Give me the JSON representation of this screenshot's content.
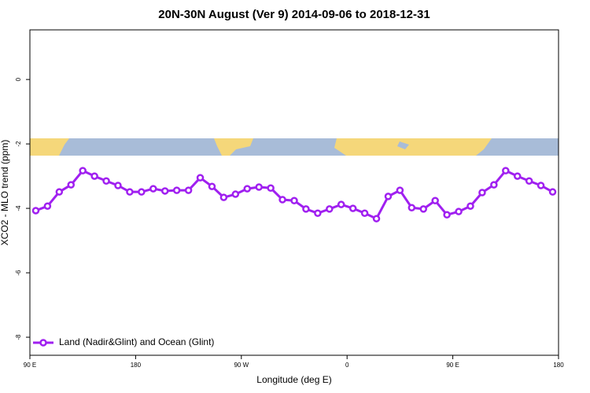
{
  "chart_data": {
    "type": "line",
    "title": "20N-30N August (Ver 9)   2014-09-06 to 2018-12-31",
    "x_label": "Longitude (deg E)",
    "y_label": "XCO2 - MLO trend (ppm)",
    "xlim": [
      90,
      540
    ],
    "xticks": [
      {
        "value": 90,
        "label": "90 E"
      },
      {
        "value": 180,
        "label": "180"
      },
      {
        "value": 270,
        "label": "90 W"
      },
      {
        "value": 360,
        "label": "0"
      },
      {
        "value": 450,
        "label": "90 E"
      },
      {
        "value": 540,
        "label": "180"
      }
    ],
    "ylim": [
      -8.56,
      1.54
    ],
    "yticks": [
      0,
      -2,
      -4,
      -6,
      -8
    ],
    "legend_position": "bottom-left",
    "x": [
      95,
      105,
      115,
      125,
      135,
      145,
      155,
      165,
      175,
      185,
      195,
      205,
      215,
      225,
      235,
      245,
      255,
      265,
      275,
      285,
      295,
      305,
      315,
      325,
      335,
      345,
      355,
      365,
      375,
      385,
      395,
      405,
      415,
      425,
      435,
      445,
      455,
      465,
      475,
      485,
      495,
      505,
      515,
      525,
      535
    ],
    "series": [
      {
        "name": "Land (Nadir&Glint) and Ocean (Glint)",
        "color": "#a020f0",
        "values": [
          -4.07,
          -3.93,
          -3.49,
          -3.27,
          -2.83,
          -3.0,
          -3.15,
          -3.29,
          -3.49,
          -3.49,
          -3.39,
          -3.46,
          -3.44,
          -3.44,
          -3.05,
          -3.32,
          -3.66,
          -3.56,
          -3.39,
          -3.34,
          -3.37,
          -3.73,
          -3.76,
          -4.02,
          -4.15,
          -4.02,
          -3.88,
          -4.0,
          -4.15,
          -4.32,
          -3.63,
          -3.44,
          -3.98,
          -4.02,
          -3.76,
          -4.2,
          -4.1,
          -3.93,
          -3.51,
          -3.27,
          -2.83,
          -3.0,
          -3.15,
          -3.29,
          -3.49
        ]
      }
    ]
  }
}
